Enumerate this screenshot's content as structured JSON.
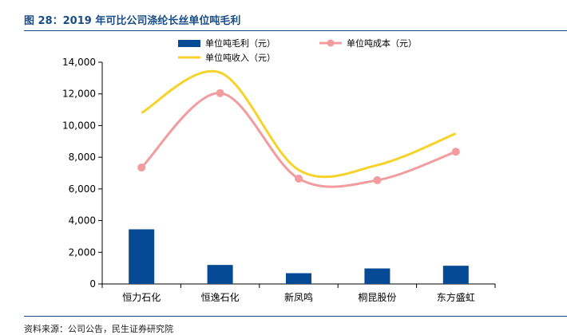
{
  "figure": {
    "title": "图 28：2019 年可比公司涤纶长丝单位吨毛利",
    "source": "资料来源：公司公告，民生证券研究院"
  },
  "colors": {
    "header": "#1a4c86",
    "bar": "#064a96",
    "cost_line": "#f29c9f",
    "revenue_line": "#f5d32a",
    "axis": "#000000"
  },
  "chart_data": {
    "type": "bar",
    "categories": [
      "恒力石化",
      "恒逸石化",
      "新凤鸣",
      "桐昆股份",
      "东方盛虹"
    ],
    "series": [
      {
        "name": "单位吨毛利（元）",
        "kind": "bar",
        "color": "#064a96",
        "values": [
          3450,
          1200,
          680,
          980,
          1150
        ]
      },
      {
        "name": "单位吨成本（元）",
        "kind": "line-markers",
        "color": "#f29c9f",
        "values": [
          7350,
          12050,
          6650,
          6550,
          8350
        ]
      },
      {
        "name": "单位吨收入（元）",
        "kind": "line",
        "color": "#f5d32a",
        "values": [
          10800,
          13350,
          7200,
          7500,
          9500
        ]
      }
    ],
    "ylim": [
      0,
      14000
    ],
    "yticks": [
      0,
      2000,
      4000,
      6000,
      8000,
      10000,
      12000,
      14000
    ],
    "ytick_labels": [
      "0",
      "2,000",
      "4,000",
      "6,000",
      "8,000",
      "10,000",
      "12,000",
      "14,000"
    ],
    "xlabel": "",
    "ylabel": "",
    "grid": false,
    "legend_position": "top"
  }
}
